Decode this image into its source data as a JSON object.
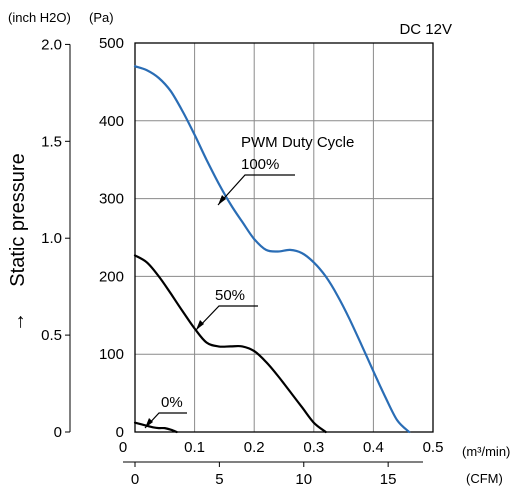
{
  "chart_data": {
    "type": "line",
    "title": "DC 12V",
    "ylabel": "Static pressure",
    "ylabel_arrow": "→",
    "legend_title": "PWM Duty Cycle",
    "x_unit_primary": "(m³/min)",
    "x_unit_secondary": "(CFM)",
    "y_unit_primary": "(Pa)",
    "y_unit_secondary": "(inch H2O)",
    "xlim": [
      0,
      0.5
    ],
    "ylim": [
      0,
      500
    ],
    "x_ticks": [
      "0",
      "0.1",
      "0.2",
      "0.3",
      "0.4",
      "0.5"
    ],
    "y_ticks": [
      "0",
      "100",
      "200",
      "300",
      "400",
      "500"
    ],
    "x2_ticks": [
      {
        "value": 0,
        "label": "0"
      },
      {
        "value": 5,
        "label": "5"
      },
      {
        "value": 10,
        "label": "10"
      },
      {
        "value": 15,
        "label": "15"
      }
    ],
    "y2_ticks": [
      {
        "value": 0,
        "label": "0"
      },
      {
        "value": 0.5,
        "label": "0.5"
      },
      {
        "value": 1.0,
        "label": "1.0"
      },
      {
        "value": 1.5,
        "label": "1.5"
      },
      {
        "value": 2.0,
        "label": "2.0"
      }
    ],
    "grid": true,
    "series": [
      {
        "name": "100%",
        "color": "#2a6db5",
        "x": [
          0,
          0.02,
          0.04,
          0.06,
          0.08,
          0.1,
          0.12,
          0.14,
          0.16,
          0.18,
          0.2,
          0.22,
          0.24,
          0.26,
          0.28,
          0.3,
          0.32,
          0.34,
          0.36,
          0.38,
          0.4,
          0.42,
          0.44,
          0.46
        ],
        "y": [
          470,
          465,
          455,
          438,
          412,
          382,
          350,
          320,
          293,
          270,
          248,
          234,
          232,
          234,
          230,
          218,
          200,
          175,
          145,
          112,
          78,
          45,
          15,
          0
        ]
      },
      {
        "name": "50%",
        "color": "#000000",
        "x": [
          0,
          0.02,
          0.04,
          0.06,
          0.08,
          0.1,
          0.12,
          0.14,
          0.16,
          0.18,
          0.2,
          0.22,
          0.24,
          0.26,
          0.28,
          0.3,
          0.32
        ],
        "y": [
          227,
          218,
          200,
          178,
          155,
          133,
          115,
          110,
          110,
          110,
          104,
          90,
          72,
          52,
          32,
          12,
          0
        ]
      },
      {
        "name": "0%",
        "color": "#000000",
        "x": [
          0,
          0.02,
          0.03,
          0.04,
          0.05,
          0.06,
          0.07
        ],
        "y": [
          12,
          8,
          6,
          5,
          5,
          3,
          0
        ]
      }
    ],
    "annotations": [
      {
        "series": "100%",
        "label": "100%"
      },
      {
        "series": "50%",
        "label": "50%"
      },
      {
        "series": "0%",
        "label": "0%"
      }
    ]
  }
}
